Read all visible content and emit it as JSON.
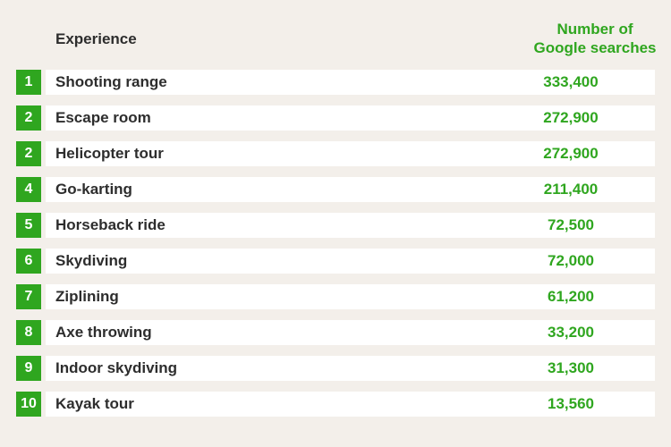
{
  "chart_data": {
    "type": "table",
    "columns": [
      "Experience",
      "Number of Google searches"
    ],
    "header_value_lines": [
      "Number of",
      "Google searches"
    ],
    "rows": [
      {
        "rank": "1",
        "experience": "Shooting range",
        "searches": "333,400"
      },
      {
        "rank": "2",
        "experience": "Escape room",
        "searches": "272,900"
      },
      {
        "rank": "2",
        "experience": "Helicopter tour",
        "searches": "272,900"
      },
      {
        "rank": "4",
        "experience": "Go-karting",
        "searches": "211,400"
      },
      {
        "rank": "5",
        "experience": "Horseback ride",
        "searches": "72,500"
      },
      {
        "rank": "6",
        "experience": "Skydiving",
        "searches": "72,000"
      },
      {
        "rank": "7",
        "experience": "Ziplining",
        "searches": "61,200"
      },
      {
        "rank": "8",
        "experience": "Axe throwing",
        "searches": "33,200"
      },
      {
        "rank": "9",
        "experience": "Indoor skydiving",
        "searches": "31,300"
      },
      {
        "rank": "10",
        "experience": "Kayak tour",
        "searches": "13,560"
      }
    ],
    "colors": {
      "accent": "#2fa61f",
      "text": "#2d2d2d",
      "row_bg": "#ffffff",
      "page_bg": "#f3efea"
    }
  }
}
